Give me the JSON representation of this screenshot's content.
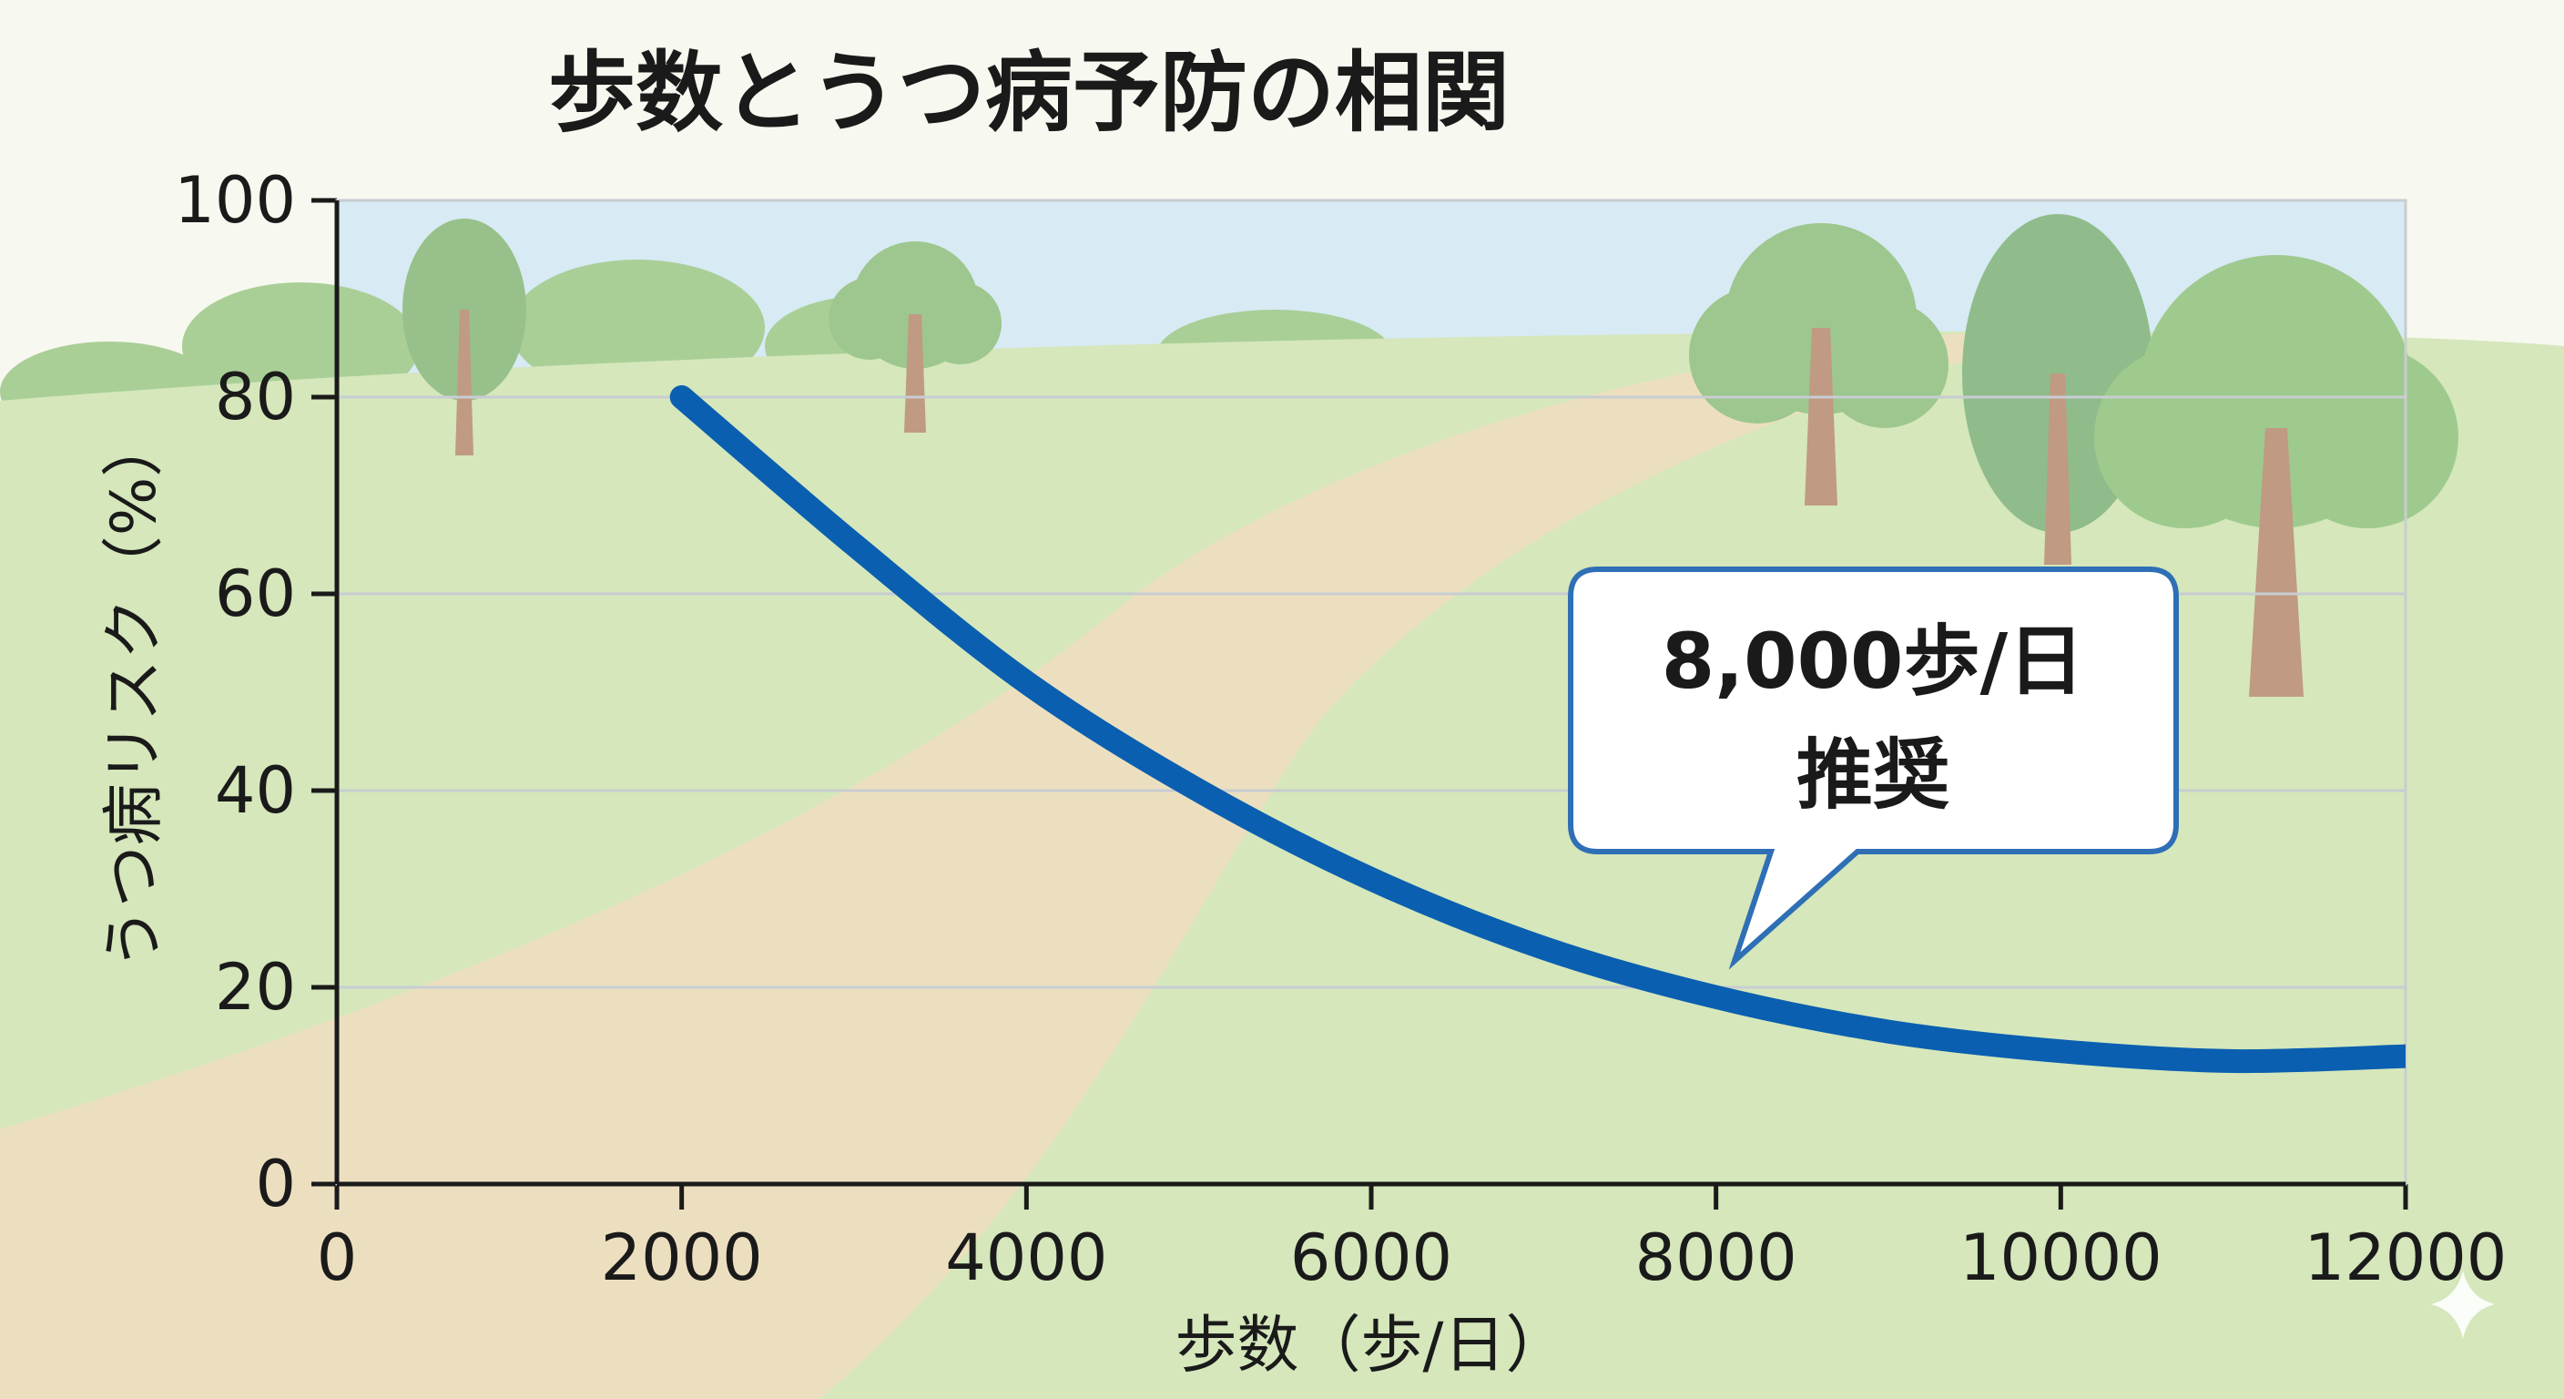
{
  "chart_data": {
    "type": "line",
    "title": "歩数とうつ病予防の相関",
    "xlabel": "歩数（歩/日）",
    "ylabel": "うつ病リスク（%）",
    "xlim": [
      0,
      12000
    ],
    "ylim": [
      0,
      100
    ],
    "xticks": [
      "0",
      "2000",
      "4000",
      "6000",
      "8000",
      "10000",
      "12000"
    ],
    "yticks": [
      "0",
      "20",
      "40",
      "60",
      "80",
      "100"
    ],
    "grid": true,
    "series": [
      {
        "color": "#0a5fb0",
        "x": [
          2000,
          3000,
          4000,
          5000,
          6000,
          7000,
          8000,
          9000,
          10000,
          11000,
          12000
        ],
        "y": [
          80,
          65,
          51,
          40,
          31,
          24,
          19,
          15.5,
          13.5,
          12.5,
          13
        ]
      }
    ],
    "annotations": [
      {
        "line1": "8,000歩/日",
        "line2": "推奨",
        "x": 8000,
        "y": 19
      }
    ]
  }
}
